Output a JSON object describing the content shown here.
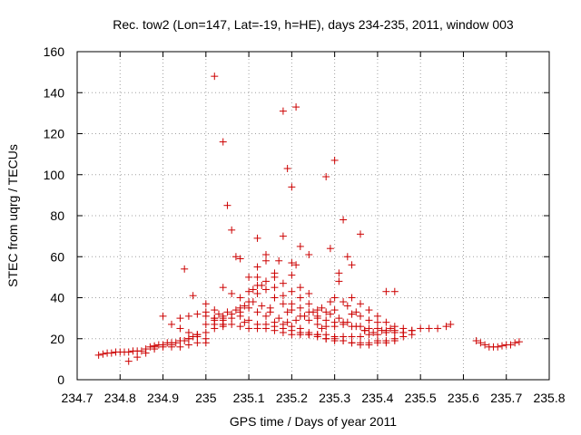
{
  "chart_data": {
    "type": "scatter",
    "title": "Rec. tow2 (Lon=147, Lat=-19, h=HE), days 234-235, 2011, window 003",
    "xlabel": "GPS time / Days of year 2011",
    "ylabel": "STEC from uqrg / TECUs",
    "xlim": [
      234.7,
      235.8
    ],
    "ylim": [
      0,
      160
    ],
    "xticks": [
      "234.7",
      "234.8",
      "234.9",
      "235",
      "235.1",
      "235.2",
      "235.3",
      "235.4",
      "235.5",
      "235.6",
      "235.7",
      "235.8"
    ],
    "yticks": [
      "0",
      "20",
      "40",
      "60",
      "80",
      "100",
      "120",
      "140",
      "160"
    ],
    "grid": true,
    "marker": "+",
    "color": "#cc0000",
    "series": [
      {
        "x": [
          234.75,
          234.76,
          234.77,
          234.78,
          234.79,
          234.8,
          234.81,
          234.82,
          234.83,
          234.84,
          234.85,
          234.86,
          234.87,
          234.88,
          234.89,
          234.9,
          234.91,
          234.92,
          234.93,
          234.94,
          234.95,
          234.96,
          234.97,
          234.98,
          234.82,
          234.84,
          234.86,
          234.88,
          234.9,
          234.92,
          234.94,
          234.96,
          234.98,
          235.0,
          234.88,
          234.9,
          234.92,
          234.94,
          234.96,
          234.98,
          235.0,
          235.02,
          235.04,
          234.9,
          234.92,
          234.94,
          234.96,
          234.98,
          235.0,
          234.94,
          234.96,
          234.98,
          235.0,
          235.02,
          235.04,
          234.95,
          234.97,
          235.0,
          235.02,
          235.04,
          235.0,
          235.02,
          235.04,
          235.06,
          235.08,
          235.1,
          235.12,
          235.14,
          235.16,
          235.18,
          235.2,
          235.22,
          235.24,
          235.26,
          235.28,
          235.3,
          235.32,
          235.34,
          235.36,
          235.38,
          235.4,
          235.42,
          235.44,
          235.46,
          235.48,
          235.5,
          235.52,
          235.54,
          235.56,
          235.57,
          235.0,
          235.02,
          235.04,
          235.06,
          235.08,
          235.1,
          235.12,
          235.14,
          235.16,
          235.18,
          235.2,
          235.22,
          235.24,
          235.26,
          235.28,
          235.3,
          235.32,
          235.34,
          235.36,
          235.38,
          235.4,
          235.42,
          235.44,
          235.46,
          235.02,
          235.04,
          235.06,
          235.08,
          235.1,
          235.12,
          235.14,
          235.16,
          235.18,
          235.2,
          235.22,
          235.24,
          235.26,
          235.28,
          235.3,
          235.32,
          235.34,
          235.36,
          235.38,
          235.4,
          235.42,
          235.44,
          235.03,
          235.05,
          235.07,
          235.09,
          235.11,
          235.13,
          235.15,
          235.17,
          235.19,
          235.21,
          235.23,
          235.25,
          235.27,
          235.29,
          235.31,
          235.33,
          235.35,
          235.37,
          235.39,
          235.41,
          235.43,
          235.04,
          235.06,
          235.08,
          235.1,
          235.12,
          235.14,
          235.16,
          235.18,
          235.2,
          235.22,
          235.24,
          235.26,
          235.28,
          235.3,
          235.32,
          235.34,
          235.36,
          235.38,
          235.4,
          235.42,
          235.44,
          235.46,
          235.48,
          235.08,
          235.1,
          235.12,
          235.14,
          235.16,
          235.18,
          235.2,
          235.22,
          235.24,
          235.26,
          235.28,
          235.3,
          235.32,
          235.34,
          235.36,
          235.38,
          235.4,
          235.1,
          235.12,
          235.14,
          235.16,
          235.18,
          235.2,
          235.22,
          235.24,
          235.26,
          235.28,
          235.3,
          235.32,
          235.34,
          235.36,
          235.38,
          235.4,
          235.42,
          235.44,
          235.46,
          235.48,
          235.02,
          235.04,
          235.05,
          235.06,
          235.07,
          235.08,
          235.12,
          235.16,
          235.18,
          235.19,
          235.2,
          235.21,
          235.22,
          235.24,
          235.28,
          235.29,
          235.3,
          235.31,
          235.32,
          235.33,
          235.34,
          235.36,
          235.42,
          235.44,
          235.12,
          235.14,
          235.17,
          235.18,
          235.2,
          235.2,
          235.22,
          235.3,
          235.31,
          235.33,
          235.34,
          235.35,
          235.09,
          235.11,
          235.13,
          235.15,
          235.16,
          235.19,
          235.21,
          235.24,
          235.26,
          235.27,
          235.29,
          235.37,
          235.63,
          235.64,
          235.65,
          235.66,
          235.67,
          235.68,
          235.69,
          235.7,
          235.71,
          235.72,
          235.73
        ],
        "y": [
          12,
          12.5,
          13,
          13,
          13.5,
          13.5,
          13.5,
          13.5,
          14,
          14,
          14,
          15,
          16,
          16.5,
          17,
          17,
          18,
          18,
          18,
          19,
          19,
          20,
          21,
          22,
          9,
          11,
          13,
          15,
          16,
          16,
          16,
          17,
          18,
          18,
          16,
          17,
          17,
          19,
          20,
          21,
          23,
          25,
          27,
          31,
          27,
          25,
          23,
          22,
          20,
          30,
          31,
          32,
          33,
          30,
          26,
          54,
          41,
          37,
          34,
          31,
          27,
          27,
          27,
          27,
          26,
          25,
          25,
          25,
          24,
          23,
          22,
          22,
          22,
          22,
          22,
          21,
          21,
          21,
          21,
          22,
          22,
          23,
          23,
          23,
          24,
          25,
          25,
          25,
          26,
          27,
          31,
          30,
          29,
          30,
          31,
          29,
          27,
          27,
          26,
          25,
          24,
          23,
          22,
          21,
          20,
          20,
          19,
          18,
          18,
          18,
          19,
          19,
          20,
          21,
          29,
          30,
          32,
          33,
          35,
          33,
          31,
          28,
          27,
          26,
          25,
          23,
          22,
          20,
          19,
          19,
          18,
          17,
          17,
          18,
          18,
          19,
          32,
          33,
          34,
          36,
          38,
          36,
          33,
          30,
          28,
          29,
          31,
          33,
          35,
          32,
          30,
          28,
          26,
          24,
          23,
          24,
          25,
          45,
          42,
          40,
          43,
          46,
          48,
          45,
          41,
          37,
          35,
          33,
          31,
          29,
          28,
          27,
          26,
          26,
          25,
          25,
          24,
          24,
          23,
          22,
          35,
          38,
          42,
          44,
          40,
          37,
          34,
          31,
          29,
          27,
          26,
          26,
          28,
          32,
          31,
          29,
          28,
          50,
          55,
          58,
          52,
          47,
          43,
          40,
          37,
          34,
          33,
          34,
          38,
          40,
          37,
          34,
          31,
          28,
          26,
          25,
          24,
          148,
          116,
          85,
          73,
          60,
          59,
          69,
          50,
          131,
          103,
          94,
          133,
          65,
          61,
          99,
          64,
          107,
          52,
          78,
          60,
          56,
          71,
          43,
          43,
          50,
          61,
          58,
          70,
          57,
          51,
          45,
          40,
          48,
          36,
          32,
          33,
          28,
          44,
          46,
          35,
          40,
          33,
          56,
          42,
          30,
          25,
          38,
          24,
          19,
          18,
          17,
          16,
          16,
          16,
          16.5,
          17,
          17,
          18,
          18.5
        ]
      }
    ]
  }
}
